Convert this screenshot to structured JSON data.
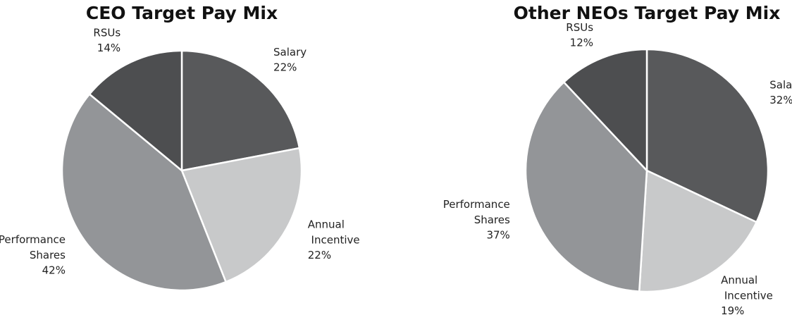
{
  "chart_data": [
    {
      "type": "pie",
      "title": "CEO Target Pay Mix",
      "categories": [
        "Salary",
        "Annual Incentive",
        "Performance Shares",
        "RSUs"
      ],
      "values": [
        22,
        22,
        42,
        14
      ],
      "value_labels": [
        "22%",
        "22%",
        "42%",
        "14%"
      ],
      "colors": [
        "#58595b",
        "#c8c9ca",
        "#939598",
        "#4d4e50"
      ]
    },
    {
      "type": "pie",
      "title": "Other NEOs Target Pay Mix",
      "categories": [
        "Salary",
        "Annual Incentive",
        "Performance Shares",
        "RSUs"
      ],
      "values": [
        32,
        19,
        37,
        12
      ],
      "value_labels": [
        "32%",
        "19%",
        "37%",
        "12%"
      ],
      "colors": [
        "#58595b",
        "#c8c9ca",
        "#939598",
        "#4d4e50"
      ]
    }
  ]
}
